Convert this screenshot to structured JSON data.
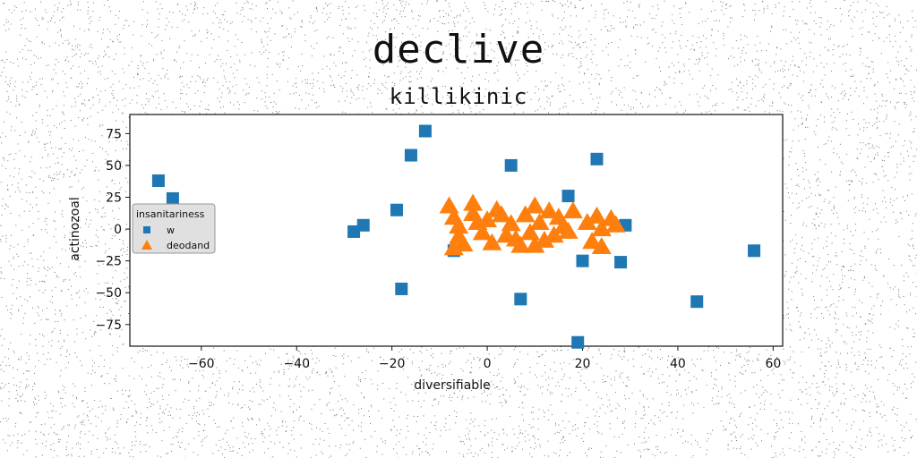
{
  "chart_data": {
    "type": "scatter",
    "title": "declive",
    "subtitle": "killikinic",
    "xlabel": "diversifiable",
    "ylabel": "actinozoal",
    "xlim": [
      -75,
      62
    ],
    "ylim": [
      -92,
      90
    ],
    "xticks": [
      -60,
      -40,
      -20,
      0,
      20,
      40,
      60
    ],
    "yticks": [
      75,
      50,
      25,
      0,
      -25,
      -50,
      -75
    ],
    "grid": false,
    "legend": {
      "title": "insanitariness",
      "placement": "center-left"
    },
    "series": [
      {
        "name": "w",
        "marker": "square",
        "color": "#1f77b4",
        "points": [
          [
            -69,
            38
          ],
          [
            -66,
            24
          ],
          [
            -28,
            -2
          ],
          [
            -26,
            3
          ],
          [
            -19,
            15
          ],
          [
            -18,
            -47
          ],
          [
            -16,
            58
          ],
          [
            -13,
            77
          ],
          [
            -7,
            -17
          ],
          [
            5,
            50
          ],
          [
            7,
            -55
          ],
          [
            17,
            26
          ],
          [
            19,
            -89
          ],
          [
            20,
            -25
          ],
          [
            23,
            55
          ],
          [
            28,
            -26
          ],
          [
            29,
            3
          ],
          [
            44,
            -57
          ],
          [
            56,
            -17
          ]
        ]
      },
      {
        "name": "deodand",
        "marker": "triangle",
        "color": "#ff7f0e",
        "points": [
          [
            -8,
            18
          ],
          [
            -7,
            9
          ],
          [
            -6,
            2
          ],
          [
            -6,
            -6
          ],
          [
            -5,
            -12
          ],
          [
            -3,
            20
          ],
          [
            -3,
            12
          ],
          [
            -2,
            5
          ],
          [
            -1,
            -3
          ],
          [
            0,
            7
          ],
          [
            1,
            -11
          ],
          [
            2,
            15
          ],
          [
            3,
            11
          ],
          [
            4,
            -5
          ],
          [
            5,
            4
          ],
          [
            6,
            -8
          ],
          [
            7,
            -13
          ],
          [
            8,
            11
          ],
          [
            9,
            -3
          ],
          [
            10,
            18
          ],
          [
            10,
            -13
          ],
          [
            11,
            5
          ],
          [
            12,
            -9
          ],
          [
            13,
            14
          ],
          [
            14,
            -5
          ],
          [
            15,
            9
          ],
          [
            16,
            2
          ],
          [
            17,
            -2
          ],
          [
            18,
            14
          ],
          [
            21,
            5
          ],
          [
            22,
            -10
          ],
          [
            23,
            10
          ],
          [
            24,
            0
          ],
          [
            24,
            -14
          ],
          [
            26,
            8
          ],
          [
            27,
            3
          ],
          [
            -7,
            -15
          ]
        ]
      }
    ]
  }
}
